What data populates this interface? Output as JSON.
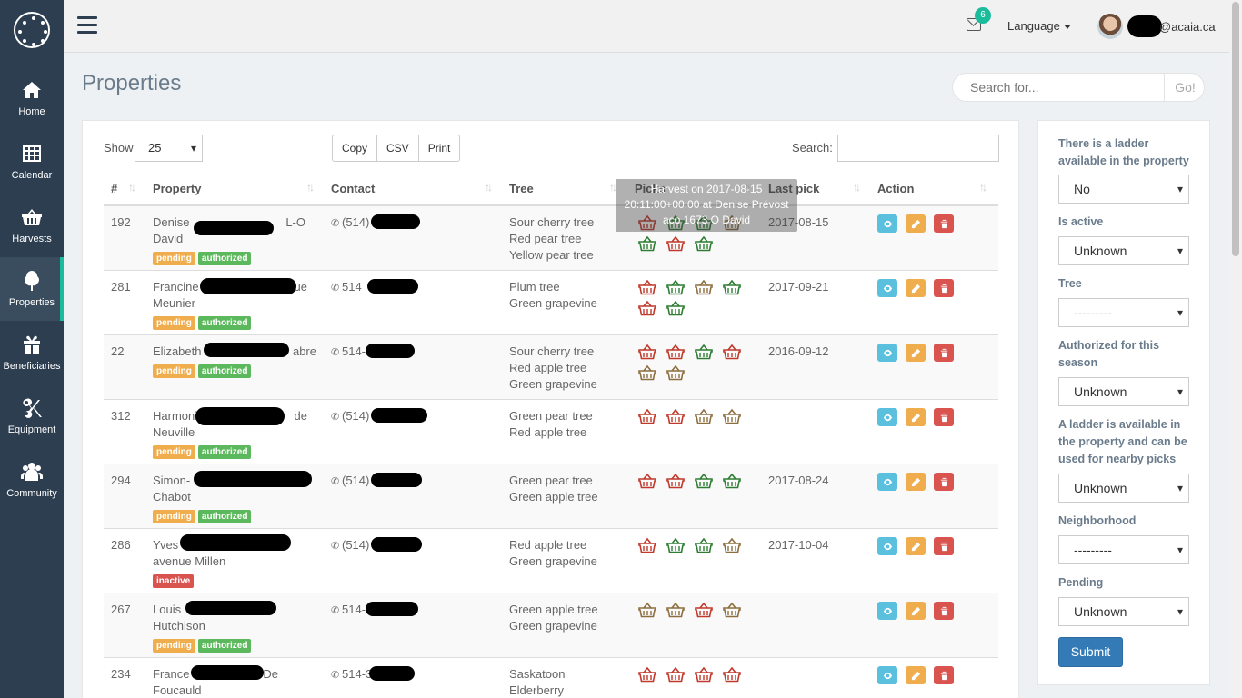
{
  "sidebar": {
    "items": [
      {
        "label": "Home",
        "icon": "home-icon"
      },
      {
        "label": "Calendar",
        "icon": "calendar-icon"
      },
      {
        "label": "Harvests",
        "icon": "basket-icon"
      },
      {
        "label": "Properties",
        "icon": "tree-icon",
        "active": true
      },
      {
        "label": "Beneficiaries",
        "icon": "gift-icon"
      },
      {
        "label": "Equipment",
        "icon": "scissors-icon"
      },
      {
        "label": "Community",
        "icon": "users-icon"
      }
    ]
  },
  "topbar": {
    "notification_count": "6",
    "language": "Language",
    "user_email": "@acaia.ca"
  },
  "page": {
    "title": "Properties",
    "search_placeholder": "Search for...",
    "search_button": "Go!"
  },
  "table_controls": {
    "show_label": "Show",
    "page_length": "25",
    "buttons": [
      "Copy",
      "CSV",
      "Print"
    ],
    "search_label": "Search:"
  },
  "columns": [
    "#",
    "Property",
    "Contact",
    "Tree",
    "Picks",
    "Last pick",
    "Action"
  ],
  "rows": [
    {
      "id": "192",
      "name1": "Denise",
      "name1_end": "L-O",
      "name2": "David",
      "labels": [
        "pending",
        "authorized"
      ],
      "phone": "(514)",
      "trees": [
        "Sour cherry tree",
        "Red pear tree",
        "Yellow pear tree"
      ],
      "picks": [
        "red",
        "green",
        "green",
        "brown",
        "green",
        "red",
        "green"
      ],
      "last_pick": "2017-08-15"
    },
    {
      "id": "281",
      "name1": "Francine",
      "name1_end": "ue",
      "name2": "Meunier",
      "labels": [
        "pending",
        "authorized"
      ],
      "phone": "514",
      "trees": [
        "Plum tree",
        "Green grapevine"
      ],
      "picks": [
        "red",
        "green",
        "brown",
        "green",
        "red",
        "green"
      ],
      "last_pick": "2017-09-21"
    },
    {
      "id": "22",
      "name1": "Elizabeth",
      "name1_end": "abre",
      "name2": "",
      "labels": [
        "pending",
        "authorized"
      ],
      "phone": "514-",
      "trees": [
        "Sour cherry tree",
        "Red apple tree",
        "Green grapevine"
      ],
      "picks": [
        "red",
        "red",
        "green",
        "red",
        "brown",
        "brown"
      ],
      "last_pick": "2016-09-12"
    },
    {
      "id": "312",
      "name1": "Harmoni",
      "name1_end": "de",
      "name2": "Neuville",
      "labels": [
        "pending",
        "authorized"
      ],
      "phone": "(514)",
      "trees": [
        "Green pear tree",
        "Red apple tree"
      ],
      "picks": [
        "red",
        "red",
        "brown",
        "brown"
      ],
      "last_pick": ""
    },
    {
      "id": "294",
      "name1": "Simon-",
      "name1_end": "",
      "name2": "Chabot",
      "labels": [
        "pending",
        "authorized"
      ],
      "phone": "(514)",
      "trees": [
        "Green pear tree",
        "Green apple tree"
      ],
      "picks": [
        "red",
        "red",
        "green",
        "green"
      ],
      "last_pick": "2017-08-24"
    },
    {
      "id": "286",
      "name1": "Yves",
      "name1_end": "",
      "name2": "avenue Millen",
      "labels": [
        "inactive"
      ],
      "phone": "(514)",
      "trees": [
        "Red apple tree",
        "Green grapevine"
      ],
      "picks": [
        "red",
        "green",
        "green",
        "brown"
      ],
      "last_pick": "2017-10-04"
    },
    {
      "id": "267",
      "name1": "Louis",
      "name1_end": "",
      "name2": "Hutchison",
      "labels": [
        "pending",
        "authorized"
      ],
      "phone": "514-",
      "trees": [
        "Green apple tree",
        "Green grapevine"
      ],
      "picks": [
        "brown",
        "brown",
        "red",
        "brown"
      ],
      "last_pick": ""
    },
    {
      "id": "234",
      "name1": "France",
      "name1_end": "De",
      "name2": "Foucauld",
      "labels": [],
      "phone": "514-3",
      "trees": [
        "Saskatoon",
        "Elderberry"
      ],
      "picks": [
        "red",
        "red",
        "red",
        "red"
      ],
      "last_pick": ""
    }
  ],
  "tooltip": {
    "line1": "Harvest on 2017-08-15",
    "line2": "20:11:00+00:00 at Denise Prévost",
    "line3": "aco 1673 O David"
  },
  "filters": {
    "items": [
      {
        "label": "There is a ladder available in the property",
        "value": "No"
      },
      {
        "label": "Is active",
        "value": "Unknown"
      },
      {
        "label": "Tree",
        "value": "---------"
      },
      {
        "label": "Authorized for this season",
        "value": "Unknown"
      },
      {
        "label": "A ladder is available in the property and can be used for nearby picks",
        "value": "Unknown"
      },
      {
        "label": "Neighborhood",
        "value": "---------"
      },
      {
        "label": "Pending",
        "value": "Unknown"
      }
    ],
    "submit": "Submit"
  },
  "colors": {
    "sidebar": "#2c3e50",
    "accent": "#1abc9c",
    "basket_red": "#c0392b",
    "basket_green": "#2e7d32",
    "basket_brown": "#8d6e3f"
  }
}
